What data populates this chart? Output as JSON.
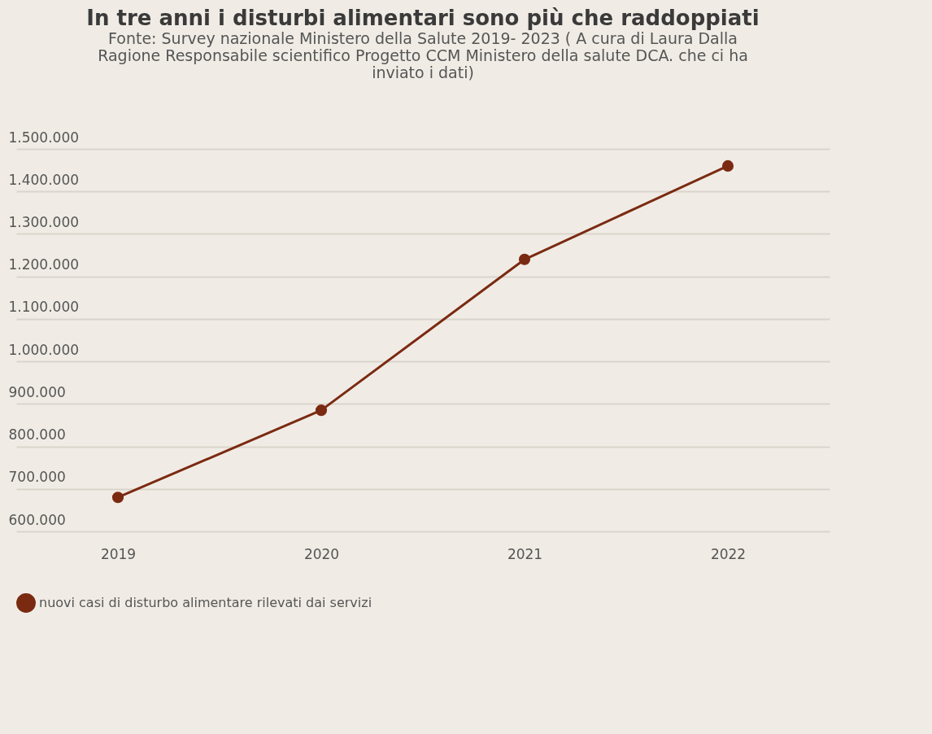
{
  "chart_data": {
    "type": "line",
    "title": "In tre anni i disturbi alimentari sono più che raddoppiati",
    "subtitle": "Fonte: Survey nazionale Ministero della Salute 2019- 2023 ( A cura di Laura Dalla Ragione Responsabile scientifico Progetto CCM Ministero della salute DCA. che ci ha inviato i dati)",
    "categories": [
      "2019",
      "2020",
      "2021",
      "2022"
    ],
    "series": [
      {
        "name": "nuovi casi di disturbo alimentare rilevati dai servizi",
        "color": "#7b2a12",
        "values": [
          680000,
          885000,
          1240000,
          1460000
        ]
      }
    ],
    "ylim": [
      600000,
      1500000
    ],
    "yticks": [
      {
        "value": 600000,
        "label": "600.000"
      },
      {
        "value": 700000,
        "label": "700.000"
      },
      {
        "value": 800000,
        "label": "800.000"
      },
      {
        "value": 900000,
        "label": "900.000"
      },
      {
        "value": 1000000,
        "label": "1.000.000"
      },
      {
        "value": 1100000,
        "label": "1.100.000"
      },
      {
        "value": 1200000,
        "label": "1.200.000"
      },
      {
        "value": 1300000,
        "label": "1.300.000"
      },
      {
        "value": 1400000,
        "label": "1.400.000"
      },
      {
        "value": 1500000,
        "label": "1.500.000"
      }
    ],
    "grid": "y",
    "legend": "bottom",
    "marker": "circle",
    "line_style": "solid"
  }
}
